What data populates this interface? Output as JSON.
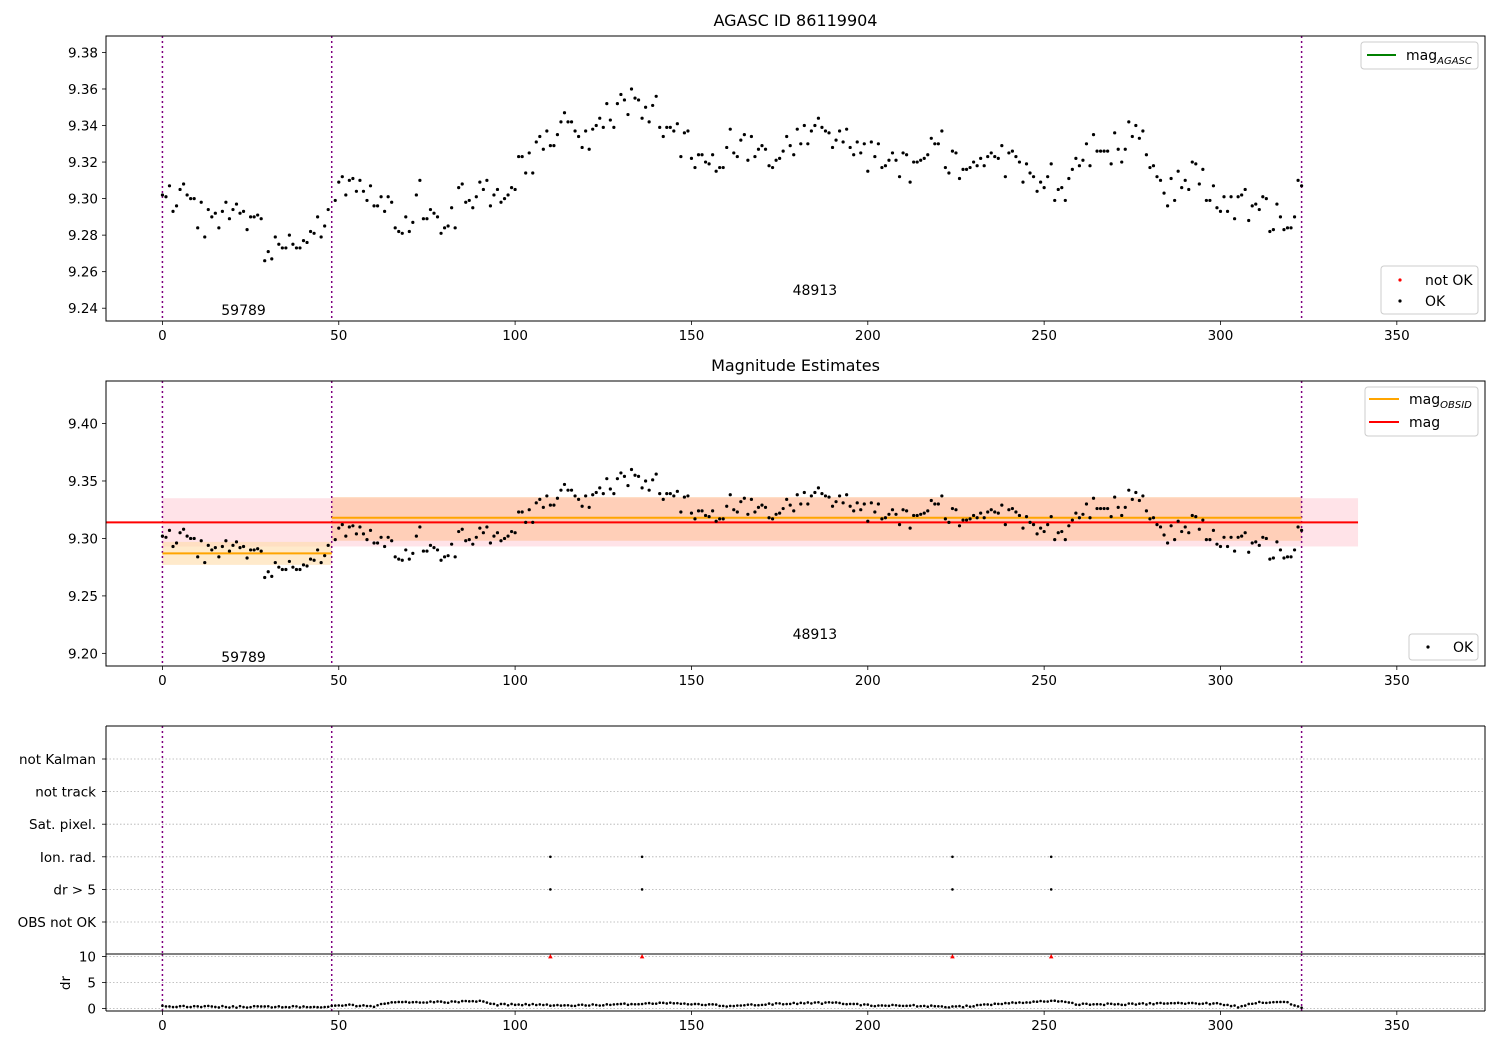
{
  "chart_data": [
    {
      "type": "scatter",
      "title": "AGASC ID 86119904",
      "xlabel": "",
      "ylabel": "",
      "xlim": [
        -16,
        375
      ],
      "ylim": [
        9.233,
        9.389
      ],
      "x_ticks": [
        0,
        50,
        100,
        150,
        200,
        250,
        300,
        350
      ],
      "y_ticks": [
        "9.24",
        "9.26",
        "9.28",
        "9.30",
        "9.32",
        "9.34",
        "9.36",
        "9.38"
      ],
      "vlines": [
        0,
        48,
        323
      ],
      "annotations": [
        {
          "text": "59789",
          "x": 23,
          "y": 9.239
        },
        {
          "text": "48913",
          "x": 185,
          "y": 9.25
        }
      ],
      "legend_lines": [
        {
          "name": "mag_AGASC",
          "label_main": "mag",
          "label_sub": "AGASC",
          "color": "#008000",
          "placement": "upper right"
        }
      ],
      "legend_points": [
        {
          "name": "not OK",
          "color": "#ff0000"
        },
        {
          "name": "OK",
          "color": "#000000"
        }
      ],
      "legend_points_placement": "lower right",
      "series": [
        {
          "name": "OK",
          "color": "#000000",
          "x": [],
          "y": []
        }
      ]
    },
    {
      "type": "scatter",
      "title": "Magnitude Estimates",
      "xlabel": "",
      "ylabel": "",
      "xlim": [
        -16,
        375
      ],
      "ylim": [
        9.189,
        9.437
      ],
      "x_ticks": [
        0,
        50,
        100,
        150,
        200,
        250,
        300,
        350
      ],
      "y_ticks": [
        "9.20",
        "9.25",
        "9.30",
        "9.35",
        "9.40"
      ],
      "vlines": [
        0,
        48,
        323
      ],
      "annotations": [
        {
          "text": "59789",
          "x": 23,
          "y": 9.197
        },
        {
          "text": "48913",
          "x": 185,
          "y": 9.217
        }
      ],
      "bands": [
        {
          "name": "mag range",
          "x0": 0,
          "x1": 339,
          "y0": 9.293,
          "y1": 9.335,
          "color": "#ffc0cb",
          "opacity": 0.45
        },
        {
          "name": "mag_OBSID 59789 range",
          "x0": 0,
          "x1": 48,
          "y0": 9.277,
          "y1": 9.297,
          "color": "#ffdca8",
          "opacity": 0.6
        },
        {
          "name": "mag_OBSID 48913 range",
          "x0": 48,
          "x1": 323,
          "y0": 9.298,
          "y1": 9.336,
          "color": "#ffc090",
          "opacity": 0.55
        }
      ],
      "lines": [
        {
          "name": "mag_OBSID 59789",
          "x0": 0,
          "x1": 48,
          "y": 9.287,
          "color": "#ffa500"
        },
        {
          "name": "mag_OBSID 48913",
          "x0": 48,
          "x1": 323,
          "y": 9.318,
          "color": "#ffa500"
        },
        {
          "name": "mag",
          "x0": -16,
          "x1": 339,
          "y": 9.314,
          "color": "#ff0000"
        }
      ],
      "legend_lines": [
        {
          "name": "mag_OBSID",
          "label_main": "mag",
          "label_sub": "OBSID",
          "color": "#ffa500"
        },
        {
          "name": "mag",
          "label_main": "mag",
          "label_sub": "",
          "color": "#ff0000"
        }
      ],
      "legend_points": [
        {
          "name": "OK",
          "color": "#000000"
        }
      ],
      "series": [
        {
          "name": "OK",
          "color": "#000000",
          "x": [],
          "y": []
        }
      ]
    },
    {
      "type": "scatter",
      "title": "",
      "xlim": [
        -16,
        375
      ],
      "categories": [
        "not Kalman",
        "not track",
        "Sat. pixel.",
        "Ion. rad.",
        "dr > 5",
        "OBS not OK"
      ],
      "x_ticks": [
        0,
        50,
        100,
        150,
        200,
        250,
        300,
        350
      ],
      "vlines": [
        0,
        48,
        323
      ],
      "flags": [
        {
          "category": "Ion. rad.",
          "x": [
            110,
            136,
            224,
            252
          ]
        },
        {
          "category": "dr > 5",
          "x": [
            110,
            136,
            224,
            252
          ]
        }
      ]
    },
    {
      "type": "scatter",
      "title": "",
      "ylabel": "dr",
      "xlim": [
        -16,
        375
      ],
      "ylim": [
        -0.5,
        10.5
      ],
      "y_ticks": [
        "0",
        "5",
        "10"
      ],
      "x_ticks": [
        0,
        50,
        100,
        150,
        200,
        250,
        300,
        350
      ],
      "vlines": [
        0,
        48,
        323
      ],
      "outliers": {
        "name": "dr > 5",
        "marker": "triangle",
        "color": "#ff0000",
        "x": [
          110,
          136,
          224,
          252
        ],
        "y": [
          10,
          10,
          10,
          10
        ]
      },
      "series": [
        {
          "name": "dr",
          "color": "#000000",
          "x": [],
          "y": []
        }
      ]
    }
  ]
}
